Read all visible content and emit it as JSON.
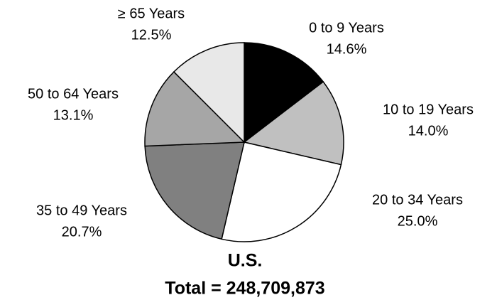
{
  "chart_data": {
    "type": "pie",
    "title": "U.S.",
    "subtitle": "Total = 248,709,873",
    "categories": [
      "0 to 9 Years",
      "10 to 19 Years",
      "20 to 34 Years",
      "35 to 49 Years",
      "50 to 64 Years",
      "≥ 65 Years"
    ],
    "values": [
      14.6,
      14.0,
      25.0,
      20.7,
      13.1,
      12.5
    ],
    "value_labels": [
      "14.6%",
      "14.0%",
      "25.0%",
      "20.7%",
      "13.1%",
      "12.5%"
    ],
    "colors": [
      "#000000",
      "#c0c0c0",
      "#ffffff",
      "#808080",
      "#a6a6a6",
      "#e8e8e8"
    ]
  }
}
